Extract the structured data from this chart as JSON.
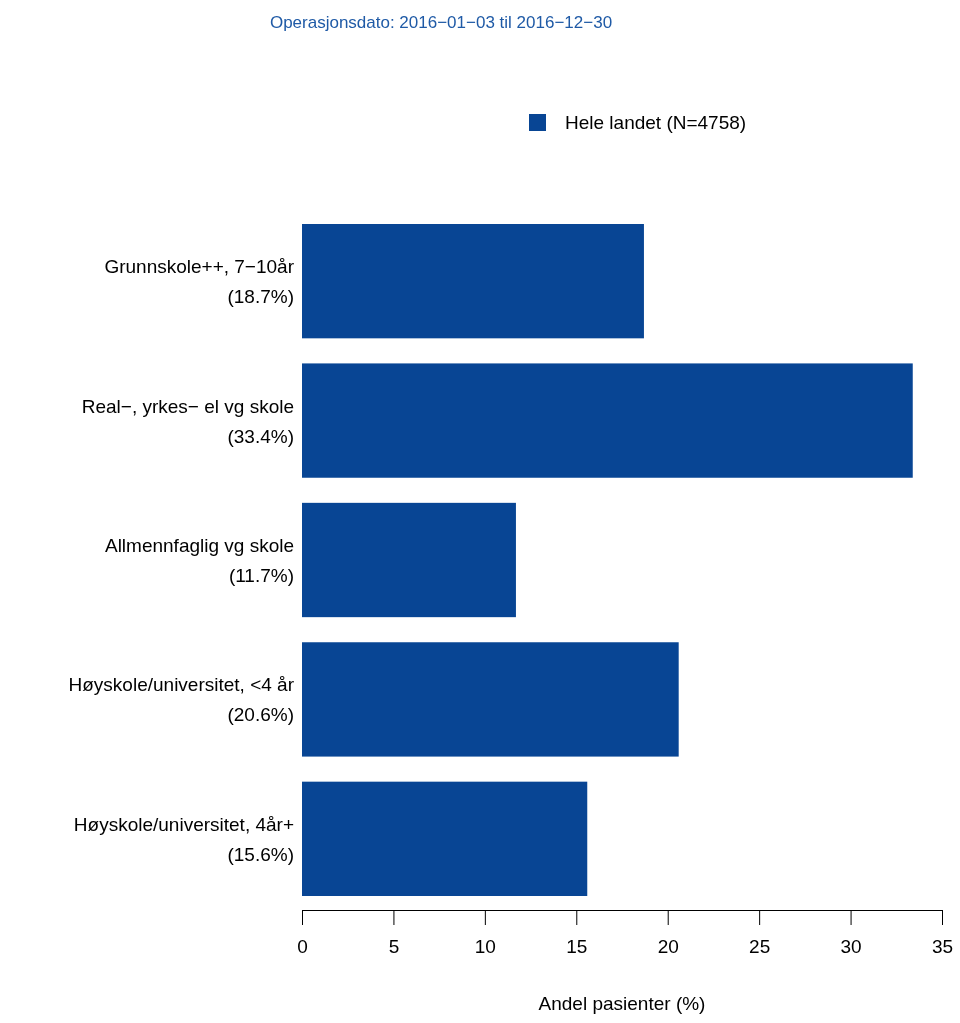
{
  "chart_data": {
    "type": "bar",
    "orientation": "horizontal",
    "title": "Operasjonsdato: 2016−01−03 til 2016−12−30",
    "xlabel": "Andel pasienter (%)",
    "categories": [
      "Grunnskole++, 7−10år\n(18.7%)",
      "Real−, yrkes− el vg skole\n(33.4%)",
      "Allmennfaglig vg skole\n(11.7%)",
      "Høyskole/universitet, <4 år\n(20.6%)",
      "Høyskole/universitet, 4år+\n(15.6%)"
    ],
    "series": [
      {
        "name": "Hele landet (N=4758)",
        "color": "#084594",
        "values": [
          18.7,
          33.4,
          11.7,
          20.6,
          15.6
        ]
      }
    ],
    "xlim": [
      0,
      35
    ],
    "xticks": [
      0,
      5,
      10,
      15,
      20,
      25,
      30,
      35
    ],
    "grid": false,
    "legend": "top"
  }
}
